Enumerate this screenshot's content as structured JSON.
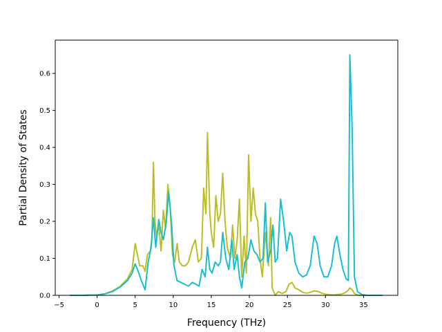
{
  "chart_data": {
    "type": "line",
    "title": "",
    "xlabel": "Frequency (THz)",
    "ylabel": "Partial Density of States",
    "xlim": [
      -5.5,
      39.5
    ],
    "ylim": [
      0.0,
      0.69
    ],
    "xticks": [
      -5,
      0,
      5,
      10,
      15,
      20,
      25,
      30,
      35
    ],
    "xtick_labels": [
      "−5",
      "0",
      "5",
      "10",
      "15",
      "20",
      "25",
      "30",
      "35"
    ],
    "yticks": [
      0.0,
      0.1,
      0.2,
      0.3,
      0.4,
      0.5,
      0.6
    ],
    "ytick_labels": [
      "0.0",
      "0.1",
      "0.2",
      "0.3",
      "0.4",
      "0.5",
      "0.6"
    ],
    "grid": false,
    "legend": "none",
    "series": [
      {
        "color": "#bcbd22",
        "points": [
          [
            -3.6,
            0.0
          ],
          [
            -2,
            0.0
          ],
          [
            0,
            0.001
          ],
          [
            1,
            0.004
          ],
          [
            2,
            0.012
          ],
          [
            3,
            0.024
          ],
          [
            4,
            0.045
          ],
          [
            4.6,
            0.07
          ],
          [
            5.0,
            0.14
          ],
          [
            5.3,
            0.11
          ],
          [
            5.6,
            0.08
          ],
          [
            6.0,
            0.08
          ],
          [
            6.3,
            0.065
          ],
          [
            6.6,
            0.11
          ],
          [
            7.0,
            0.12
          ],
          [
            7.2,
            0.16
          ],
          [
            7.4,
            0.36
          ],
          [
            7.6,
            0.2
          ],
          [
            7.8,
            0.16
          ],
          [
            8.1,
            0.19
          ],
          [
            8.4,
            0.12
          ],
          [
            8.7,
            0.23
          ],
          [
            9.0,
            0.18
          ],
          [
            9.3,
            0.3
          ],
          [
            9.6,
            0.24
          ],
          [
            9.9,
            0.11
          ],
          [
            10.2,
            0.09
          ],
          [
            10.5,
            0.14
          ],
          [
            10.8,
            0.09
          ],
          [
            11.2,
            0.08
          ],
          [
            11.6,
            0.08
          ],
          [
            12.0,
            0.09
          ],
          [
            12.5,
            0.13
          ],
          [
            12.9,
            0.15
          ],
          [
            13.3,
            0.09
          ],
          [
            13.7,
            0.1
          ],
          [
            14.0,
            0.29
          ],
          [
            14.3,
            0.22
          ],
          [
            14.5,
            0.44
          ],
          [
            14.8,
            0.22
          ],
          [
            15.0,
            0.17
          ],
          [
            15.3,
            0.13
          ],
          [
            15.6,
            0.27
          ],
          [
            15.9,
            0.2
          ],
          [
            16.2,
            0.22
          ],
          [
            16.5,
            0.33
          ],
          [
            16.8,
            0.2
          ],
          [
            17.1,
            0.13
          ],
          [
            17.5,
            0.1
          ],
          [
            17.8,
            0.19
          ],
          [
            18.1,
            0.1
          ],
          [
            18.4,
            0.15
          ],
          [
            18.7,
            0.26
          ],
          [
            19.0,
            0.05
          ],
          [
            19.3,
            0.16
          ],
          [
            19.6,
            0.06
          ],
          [
            19.9,
            0.38
          ],
          [
            20.2,
            0.2
          ],
          [
            20.5,
            0.29
          ],
          [
            20.8,
            0.22
          ],
          [
            21.1,
            0.2
          ],
          [
            21.4,
            0.1
          ],
          [
            21.7,
            0.05
          ],
          [
            22.1,
            0.17
          ],
          [
            22.5,
            0.08
          ],
          [
            22.8,
            0.21
          ],
          [
            23.0,
            0.02
          ],
          [
            23.4,
            0.0
          ],
          [
            23.8,
            0.01
          ],
          [
            24.3,
            0.005
          ],
          [
            24.8,
            0.01
          ],
          [
            25.2,
            0.03
          ],
          [
            25.6,
            0.035
          ],
          [
            26.0,
            0.02
          ],
          [
            26.5,
            0.015
          ],
          [
            27.0,
            0.008
          ],
          [
            27.5,
            0.006
          ],
          [
            28.0,
            0.008
          ],
          [
            28.5,
            0.012
          ],
          [
            29.0,
            0.011
          ],
          [
            29.5,
            0.006
          ],
          [
            30.0,
            0.003
          ],
          [
            30.5,
            0.002
          ],
          [
            31.0,
            0.001
          ],
          [
            31.5,
            0.002
          ],
          [
            32.0,
            0.003
          ],
          [
            32.5,
            0.006
          ],
          [
            32.9,
            0.012
          ],
          [
            33.2,
            0.02
          ],
          [
            33.5,
            0.015
          ],
          [
            33.8,
            0.005
          ],
          [
            34.2,
            0.001
          ],
          [
            35,
            0.0
          ],
          [
            37.5,
            0.0
          ]
        ]
      },
      {
        "color": "#17becf",
        "points": [
          [
            -3.6,
            0.0
          ],
          [
            -2,
            0.0
          ],
          [
            0,
            0.001
          ],
          [
            1,
            0.004
          ],
          [
            2,
            0.01
          ],
          [
            3,
            0.022
          ],
          [
            4,
            0.04
          ],
          [
            4.6,
            0.06
          ],
          [
            5.0,
            0.085
          ],
          [
            5.4,
            0.065
          ],
          [
            5.8,
            0.04
          ],
          [
            6.1,
            0.025
          ],
          [
            6.3,
            0.015
          ],
          [
            6.7,
            0.09
          ],
          [
            7.1,
            0.13
          ],
          [
            7.4,
            0.21
          ],
          [
            7.7,
            0.13
          ],
          [
            8.1,
            0.205
          ],
          [
            8.4,
            0.17
          ],
          [
            8.7,
            0.15
          ],
          [
            9.1,
            0.2
          ],
          [
            9.4,
            0.28
          ],
          [
            9.8,
            0.19
          ],
          [
            10.1,
            0.08
          ],
          [
            10.5,
            0.04
          ],
          [
            11.0,
            0.035
          ],
          [
            11.5,
            0.03
          ],
          [
            12.0,
            0.025
          ],
          [
            12.5,
            0.035
          ],
          [
            13.0,
            0.03
          ],
          [
            13.4,
            0.025
          ],
          [
            13.8,
            0.07
          ],
          [
            14.2,
            0.05
          ],
          [
            14.5,
            0.13
          ],
          [
            14.8,
            0.07
          ],
          [
            15.1,
            0.06
          ],
          [
            15.5,
            0.09
          ],
          [
            15.9,
            0.08
          ],
          [
            16.2,
            0.09
          ],
          [
            16.5,
            0.17
          ],
          [
            16.9,
            0.1
          ],
          [
            17.3,
            0.07
          ],
          [
            17.7,
            0.15
          ],
          [
            18.0,
            0.07
          ],
          [
            18.4,
            0.11
          ],
          [
            18.7,
            0.05
          ],
          [
            19.0,
            0.02
          ],
          [
            19.4,
            0.09
          ],
          [
            19.8,
            0.1
          ],
          [
            20.2,
            0.15
          ],
          [
            20.6,
            0.12
          ],
          [
            21.0,
            0.11
          ],
          [
            21.4,
            0.09
          ],
          [
            21.8,
            0.1
          ],
          [
            22.1,
            0.25
          ],
          [
            22.4,
            0.09
          ],
          [
            22.8,
            0.12
          ],
          [
            23.1,
            0.19
          ],
          [
            23.4,
            0.09
          ],
          [
            23.7,
            0.1
          ],
          [
            24.1,
            0.26
          ],
          [
            24.5,
            0.2
          ],
          [
            24.9,
            0.12
          ],
          [
            25.3,
            0.17
          ],
          [
            25.6,
            0.16
          ],
          [
            26.0,
            0.09
          ],
          [
            26.5,
            0.06
          ],
          [
            27.0,
            0.05
          ],
          [
            27.5,
            0.055
          ],
          [
            28.0,
            0.08
          ],
          [
            28.5,
            0.16
          ],
          [
            28.9,
            0.14
          ],
          [
            29.3,
            0.08
          ],
          [
            29.8,
            0.05
          ],
          [
            30.3,
            0.05
          ],
          [
            30.8,
            0.08
          ],
          [
            31.2,
            0.14
          ],
          [
            31.5,
            0.16
          ],
          [
            31.9,
            0.11
          ],
          [
            32.3,
            0.07
          ],
          [
            32.7,
            0.045
          ],
          [
            33.0,
            0.04
          ],
          [
            33.2,
            0.65
          ],
          [
            33.5,
            0.45
          ],
          [
            33.8,
            0.05
          ],
          [
            34.2,
            0.01
          ],
          [
            34.8,
            0.002
          ],
          [
            35.5,
            0.0
          ],
          [
            37.5,
            0.0
          ]
        ]
      }
    ]
  }
}
